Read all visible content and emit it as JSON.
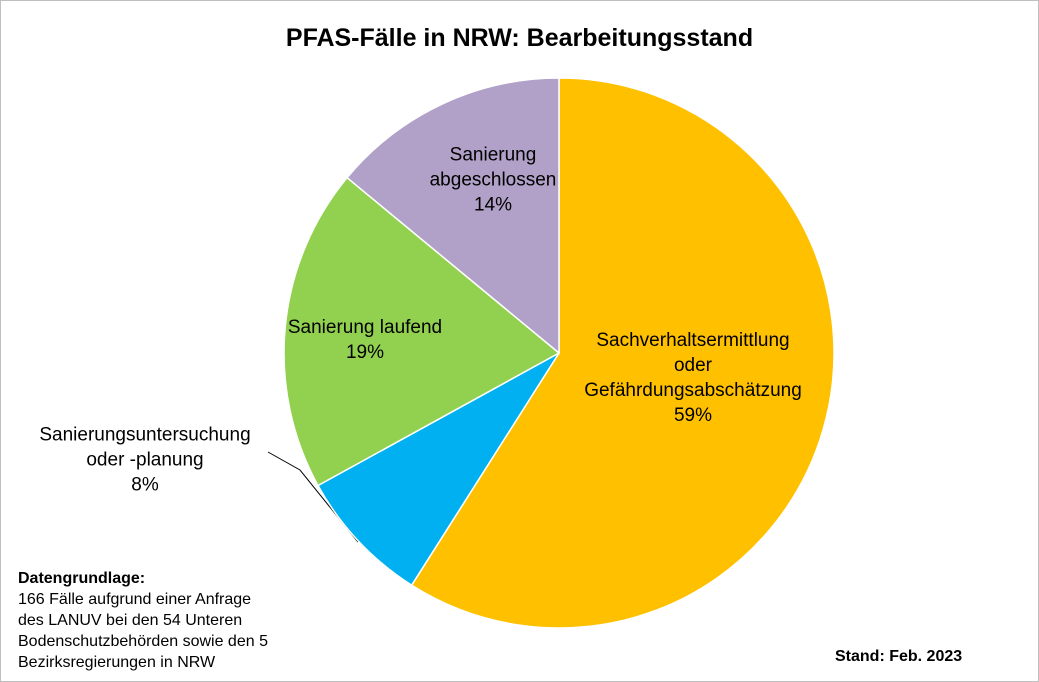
{
  "chart_data": {
    "type": "pie",
    "title": "PFAS-Fälle in NRW: Bearbeitungsstand",
    "categories": [
      "Sachverhaltsermittlung\noder\nGefährdungsabschätzung",
      "Sanierungsuntersuchung\noder -planung",
      "Sanierung laufend",
      "Sanierung\nabgeschlossen"
    ],
    "values": [
      59,
      8,
      19,
      14
    ],
    "value_labels": [
      "59%",
      "8%",
      "19%",
      "14%"
    ],
    "colors": [
      "#FFC000",
      "#00B0F0",
      "#92D050",
      "#B1A0C7"
    ],
    "note_title": "Datengrundlage:",
    "note_text": "166 Fälle aufgrund einer Anfrage\ndes LANUV bei den 54 Unteren\nBodenschutzbehörden sowie den 5\nBezirksregierungen in NRW",
    "date_note": "Stand: Feb. 2023"
  }
}
